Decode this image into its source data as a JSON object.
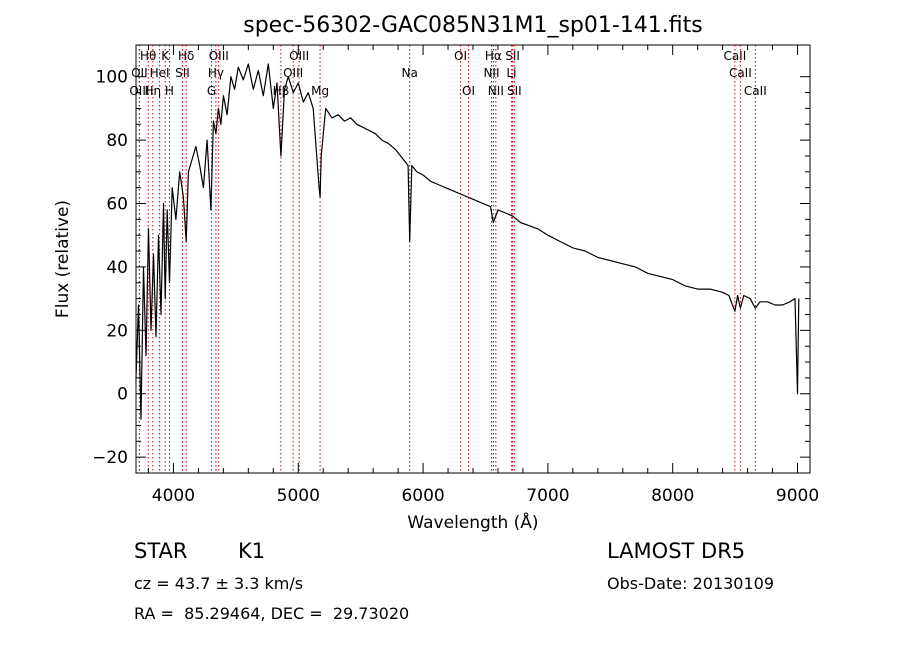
{
  "chart_data": {
    "type": "line",
    "title": "spec-56302-GAC085N31M1_sp01-141.fits",
    "xlabel": "Wavelength (Å)",
    "ylabel": "Flux (relative)",
    "xlim": [
      3700,
      9100
    ],
    "ylim": [
      -25,
      110
    ],
    "xticks": [
      4000,
      5000,
      6000,
      7000,
      8000,
      9000
    ],
    "yticks": [
      -20,
      0,
      20,
      40,
      60,
      80,
      100
    ],
    "grid": false,
    "line_color": "#000000",
    "marker_color": "#cc0000",
    "series": [
      {
        "x": [
          3700,
          3720,
          3740,
          3760,
          3780,
          3800,
          3820,
          3840,
          3860,
          3880,
          3900,
          3920,
          3934,
          3950,
          3968,
          3990,
          4020,
          4050,
          4080,
          4102,
          4120,
          4150,
          4180,
          4210,
          4240,
          4270,
          4300,
          4320,
          4340,
          4360,
          4380,
          4400,
          4430,
          4460,
          4490,
          4520,
          4560,
          4600,
          4640,
          4680,
          4720,
          4760,
          4800,
          4830,
          4861,
          4890,
          4920,
          4960,
          5000,
          5040,
          5080,
          5120,
          5167,
          5175,
          5184,
          5220,
          5270,
          5320,
          5370,
          5420,
          5470,
          5520,
          5570,
          5620,
          5670,
          5720,
          5780,
          5840,
          5880,
          5893,
          5910,
          5950,
          6000,
          6060,
          6120,
          6180,
          6240,
          6300,
          6360,
          6420,
          6480,
          6540,
          6563,
          6600,
          6660,
          6720,
          6780,
          6850,
          6920,
          7000,
          7100,
          7200,
          7300,
          7400,
          7500,
          7600,
          7700,
          7800,
          7900,
          8000,
          8100,
          8200,
          8300,
          8400,
          8450,
          8498,
          8520,
          8542,
          8570,
          8620,
          8662,
          8700,
          8760,
          8820,
          8880,
          8940,
          8980,
          9000,
          9010
        ],
        "y": [
          5,
          28,
          -8,
          40,
          12,
          52,
          20,
          44,
          18,
          50,
          25,
          60,
          30,
          58,
          35,
          65,
          55,
          70,
          62,
          48,
          70,
          74,
          78,
          72,
          65,
          80,
          58,
          86,
          82,
          90,
          85,
          94,
          88,
          100,
          96,
          103,
          99,
          104,
          96,
          102,
          94,
          104,
          90,
          98,
          75,
          96,
          100,
          95,
          98,
          92,
          95,
          90,
          65,
          62,
          75,
          90,
          87,
          88,
          86,
          87,
          85,
          84,
          83,
          82,
          80,
          79,
          77,
          74,
          72,
          48,
          72,
          70,
          69,
          67,
          66,
          65,
          64,
          63,
          62,
          61,
          60,
          59,
          54,
          58,
          57,
          56,
          54,
          53,
          52,
          50,
          48,
          46,
          45,
          43,
          42,
          41,
          40,
          38,
          37,
          36,
          34,
          33,
          33,
          32,
          31,
          26,
          31,
          27,
          31,
          30,
          27,
          29,
          29,
          28,
          28,
          29,
          30,
          0,
          30
        ]
      }
    ],
    "lines": [
      {
        "label": "Hθ",
        "x": 3798,
        "row": 0
      },
      {
        "label": "K",
        "x": 3934,
        "row": 0
      },
      {
        "label": "Hδ",
        "x": 4102,
        "row": 0
      },
      {
        "label": "OIII",
        "x": 4363,
        "row": 0
      },
      {
        "label": "OIII",
        "x": 5007,
        "row": 0
      },
      {
        "label": "OI",
        "x": 6300,
        "row": 0
      },
      {
        "label": "Hα",
        "x": 6563,
        "row": 0
      },
      {
        "label": "SII",
        "x": 6717,
        "row": 0
      },
      {
        "label": "CaII",
        "x": 8498,
        "row": 0
      },
      {
        "label": "OII",
        "x": 3727,
        "row": 1
      },
      {
        "label": "HeI",
        "x": 3889,
        "row": 1
      },
      {
        "label": "SII",
        "x": 4072,
        "row": 1
      },
      {
        "label": "Hγ",
        "x": 4340,
        "row": 1
      },
      {
        "label": "OIII",
        "x": 4959,
        "row": 1
      },
      {
        "label": "Na",
        "x": 5893,
        "row": 1
      },
      {
        "label": "NII",
        "x": 6548,
        "row": 1
      },
      {
        "label": "Li",
        "x": 6708,
        "row": 1
      },
      {
        "label": "CaII",
        "x": 8542,
        "row": 1
      },
      {
        "label": "OIII",
        "x": 3727,
        "row": 2
      },
      {
        "label": "Hη",
        "x": 3835,
        "row": 2
      },
      {
        "label": "H",
        "x": 3968,
        "row": 2
      },
      {
        "label": "G",
        "x": 4305,
        "row": 2
      },
      {
        "label": "Hβ",
        "x": 4861,
        "row": 2
      },
      {
        "label": "Mg",
        "x": 5175,
        "row": 2
      },
      {
        "label": "OI",
        "x": 6364,
        "row": 2
      },
      {
        "label": "NII",
        "x": 6583,
        "row": 2
      },
      {
        "label": "SII",
        "x": 6731,
        "row": 2
      },
      {
        "label": "CaII",
        "x": 8662,
        "row": 2
      }
    ]
  },
  "info": {
    "object_class": "STAR",
    "subclass": "K1",
    "survey": "LAMOST DR5",
    "cz": "cz = 43.7 ± 3.3 km/s",
    "obs_date": "Obs-Date: 20130109",
    "coords": "RA =  85.29464, DEC =  29.73020"
  }
}
